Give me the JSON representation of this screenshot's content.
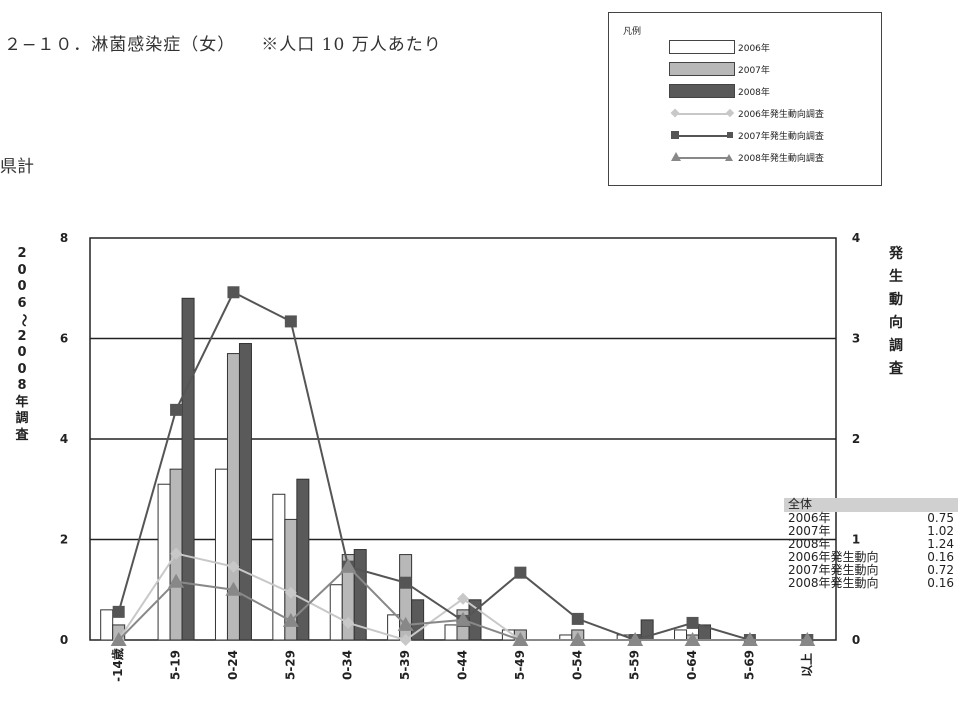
{
  "page": {
    "title": "２−１０．淋菌感染症（女）",
    "note": "※人口 10 万人あたり",
    "region": "県計"
  },
  "legend": {
    "title": "凡例",
    "items": [
      {
        "label": "2006年",
        "kind": "bar",
        "color": "#ffffff"
      },
      {
        "label": "2007年",
        "kind": "bar",
        "color": "#b8b8b8"
      },
      {
        "label": "2008年",
        "kind": "bar",
        "color": "#5a5a5a"
      },
      {
        "label": "2006年発生動向調査",
        "kind": "line",
        "color": "#c8c8c8",
        "marker": "diamond"
      },
      {
        "label": "2007年発生動向調査",
        "kind": "line",
        "color": "#555555",
        "marker": "square"
      },
      {
        "label": "2008年発生動向調査",
        "kind": "line",
        "color": "#888888",
        "marker": "triangle"
      }
    ]
  },
  "axes": {
    "left_label_chars": [
      "2",
      "0",
      "0",
      "6",
      "〜",
      "2",
      "0",
      "0",
      "8",
      "年",
      "調",
      "査"
    ],
    "right_label_chars": [
      "発",
      "生",
      "動",
      "向",
      "調",
      "査"
    ]
  },
  "summary": {
    "header": "全体",
    "rows": [
      {
        "label": "2006年",
        "value": "0.75"
      },
      {
        "label": "2007年",
        "value": "1.02"
      },
      {
        "label": "2008年",
        "value": "1.24"
      },
      {
        "label": "2006年発生動向",
        "value": "0.16"
      },
      {
        "label": "2007年発生動向",
        "value": "0.72"
      },
      {
        "label": "2008年発生動向",
        "value": "0.16"
      }
    ]
  },
  "chart_data": {
    "type": "bar",
    "categories": [
      "-14歳",
      "5-19",
      "0-24",
      "5-29",
      "0-34",
      "5-39",
      "0-44",
      "5-49",
      "0-54",
      "5-59",
      "0-64",
      "5-69",
      "以上"
    ],
    "y_left": {
      "ylim": [
        0,
        8
      ],
      "ticks": [
        0,
        2,
        4,
        6,
        8
      ]
    },
    "y_right": {
      "ylim": [
        0,
        4
      ],
      "ticks": [
        0,
        1,
        2,
        3,
        4
      ]
    },
    "grid": true,
    "bar_series": [
      {
        "name": "2006年",
        "color": "#ffffff",
        "values": [
          0.6,
          3.1,
          3.4,
          2.9,
          1.1,
          0.5,
          0.3,
          0.2,
          0.1,
          0.1,
          0.2,
          0,
          0
        ]
      },
      {
        "name": "2007年",
        "color": "#b8b8b8",
        "values": [
          0.3,
          3.4,
          5.7,
          2.4,
          1.7,
          1.7,
          0.6,
          0.2,
          0.2,
          0.1,
          0.1,
          0,
          0
        ]
      },
      {
        "name": "2008年",
        "color": "#5a5a5a",
        "values": [
          0,
          6.8,
          5.9,
          3.2,
          1.8,
          0.8,
          0.8,
          0,
          0,
          0.4,
          0.3,
          0,
          0
        ]
      }
    ],
    "line_series": [
      {
        "name": "2006年発生動向調査",
        "color": "#c8c8c8",
        "marker": "diamond",
        "axis": "right",
        "values": [
          0,
          0.86,
          0.73,
          0.47,
          0.17,
          0,
          0.41,
          0,
          0,
          0,
          0,
          0,
          0
        ]
      },
      {
        "name": "2007年発生動向調査",
        "color": "#555555",
        "marker": "square",
        "axis": "right",
        "values": [
          0.28,
          2.29,
          3.46,
          3.17,
          0.73,
          0.57,
          0.19,
          0.67,
          0.21,
          0,
          0.17,
          0,
          0
        ]
      },
      {
        "name": "2008年発生動向調査",
        "color": "#888888",
        "marker": "triangle",
        "axis": "right",
        "values": [
          0,
          0.58,
          0.5,
          0.19,
          0.73,
          0.15,
          0.2,
          0,
          0,
          0,
          0,
          0,
          0
        ]
      }
    ]
  }
}
